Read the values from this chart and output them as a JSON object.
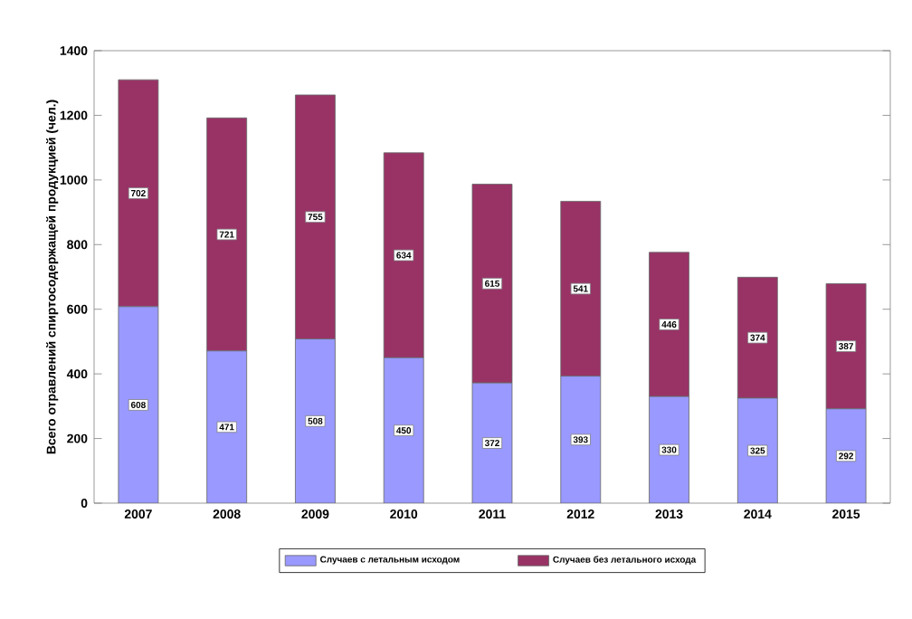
{
  "chart_data": {
    "type": "bar",
    "stacked": true,
    "ylabel": "Всего отравлений спиртосодержащей  продукцией (чел.)",
    "categories": [
      "2007",
      "2008",
      "2009",
      "2010",
      "2011",
      "2012",
      "2013",
      "2014",
      "2015"
    ],
    "series": [
      {
        "name": "Случаев с летальным исходом",
        "color": "#9999ff",
        "values": [
          608,
          471,
          508,
          450,
          372,
          393,
          330,
          325,
          292
        ]
      },
      {
        "name": "Случаев без летального исхода",
        "color": "#993366",
        "values": [
          702,
          721,
          755,
          634,
          615,
          541,
          446,
          374,
          387
        ]
      }
    ],
    "ylim": [
      0,
      1400
    ],
    "yticks": [
      0,
      200,
      400,
      600,
      800,
      1000,
      1200,
      1400
    ],
    "data_labels": true,
    "legend": "bottom"
  }
}
